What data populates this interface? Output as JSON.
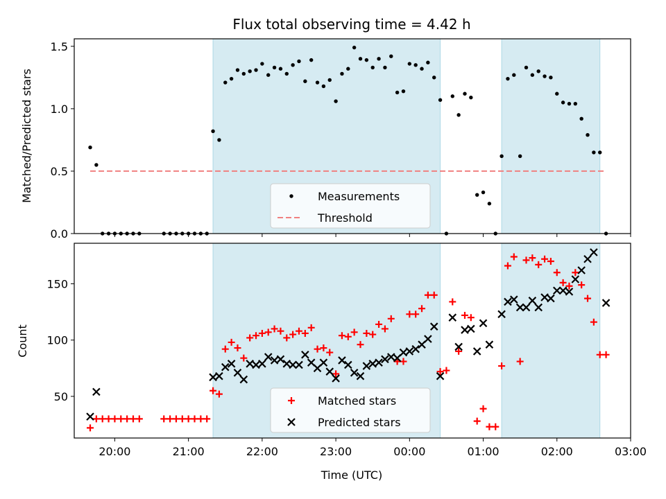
{
  "chart_data": [
    {
      "type": "scatter",
      "title": "Flux total observing time = 4.42 h",
      "xlabel": "",
      "ylabel": "Matched/Predicted stars",
      "ylim": [
        0,
        1.56
      ],
      "yticks": [
        "0.0",
        "0.5",
        "1.0",
        "1.5"
      ],
      "grid": false,
      "legend_position": "lower-center",
      "shaded_spans": [
        [
          "21:20",
          "00:25"
        ],
        [
          "01:15",
          "02:35"
        ]
      ],
      "threshold": {
        "name": "Threshold",
        "value": 0.5,
        "x_start": "19:40",
        "x_end": "02:40",
        "color": "#f08080",
        "style": "dashed"
      },
      "series": [
        {
          "name": "Measurements",
          "color": "#000000",
          "marker": "dot",
          "points": [
            [
              "19:40",
              0.69
            ],
            [
              "19:45",
              0.55
            ],
            [
              "19:50",
              0
            ],
            [
              "19:55",
              0
            ],
            [
              "20:00",
              0
            ],
            [
              "20:05",
              0
            ],
            [
              "20:10",
              0
            ],
            [
              "20:15",
              0
            ],
            [
              "20:20",
              0
            ],
            [
              "20:40",
              0
            ],
            [
              "20:45",
              0
            ],
            [
              "20:50",
              0
            ],
            [
              "20:55",
              0
            ],
            [
              "21:00",
              0
            ],
            [
              "21:05",
              0
            ],
            [
              "21:10",
              0
            ],
            [
              "21:15",
              0
            ],
            [
              "21:20",
              0.82
            ],
            [
              "21:25",
              0.75
            ],
            [
              "21:30",
              1.21
            ],
            [
              "21:35",
              1.24
            ],
            [
              "21:40",
              1.31
            ],
            [
              "21:45",
              1.28
            ],
            [
              "21:50",
              1.3
            ],
            [
              "21:55",
              1.31
            ],
            [
              "22:00",
              1.36
            ],
            [
              "22:05",
              1.27
            ],
            [
              "22:10",
              1.33
            ],
            [
              "22:15",
              1.32
            ],
            [
              "22:20",
              1.28
            ],
            [
              "22:25",
              1.35
            ],
            [
              "22:30",
              1.38
            ],
            [
              "22:35",
              1.22
            ],
            [
              "22:40",
              1.39
            ],
            [
              "22:45",
              1.21
            ],
            [
              "22:50",
              1.18
            ],
            [
              "22:55",
              1.23
            ],
            [
              "23:00",
              1.06
            ],
            [
              "23:05",
              1.28
            ],
            [
              "23:10",
              1.32
            ],
            [
              "23:15",
              1.49
            ],
            [
              "23:20",
              1.4
            ],
            [
              "23:25",
              1.39
            ],
            [
              "23:30",
              1.33
            ],
            [
              "23:35",
              1.4
            ],
            [
              "23:40",
              1.33
            ],
            [
              "23:45",
              1.42
            ],
            [
              "23:50",
              1.13
            ],
            [
              "23:55",
              1.14
            ],
            [
              "00:00",
              1.36
            ],
            [
              "00:05",
              1.35
            ],
            [
              "00:10",
              1.32
            ],
            [
              "00:15",
              1.37
            ],
            [
              "00:20",
              1.25
            ],
            [
              "00:25",
              1.07
            ],
            [
              "00:30",
              0
            ],
            [
              "00:35",
              1.1
            ],
            [
              "00:40",
              0.95
            ],
            [
              "00:45",
              1.12
            ],
            [
              "00:50",
              1.09
            ],
            [
              "00:55",
              0.31
            ],
            [
              "01:00",
              0.33
            ],
            [
              "01:05",
              0.24
            ],
            [
              "01:10",
              0
            ],
            [
              "01:15",
              0.62
            ],
            [
              "01:20",
              1.24
            ],
            [
              "01:25",
              1.27
            ],
            [
              "01:30",
              0.62
            ],
            [
              "01:35",
              1.33
            ],
            [
              "01:40",
              1.27
            ],
            [
              "01:45",
              1.3
            ],
            [
              "01:50",
              1.26
            ],
            [
              "01:55",
              1.25
            ],
            [
              "02:00",
              1.12
            ],
            [
              "02:05",
              1.05
            ],
            [
              "02:10",
              1.04
            ],
            [
              "02:15",
              1.04
            ],
            [
              "02:20",
              0.92
            ],
            [
              "02:25",
              0.79
            ],
            [
              "02:30",
              0.65
            ],
            [
              "02:35",
              0.65
            ],
            [
              "02:40",
              0
            ]
          ]
        }
      ]
    },
    {
      "type": "scatter",
      "title": "",
      "xlabel": "Time (UTC)",
      "ylabel": "Count",
      "ylim": [
        13,
        186
      ],
      "xlim": [
        "19:27",
        "03:00"
      ],
      "xticks": [
        "20:00",
        "21:00",
        "22:00",
        "23:00",
        "00:00",
        "01:00",
        "02:00",
        "03:00"
      ],
      "yticks": [
        "50",
        "100",
        "150"
      ],
      "grid": false,
      "legend_position": "lower-center",
      "shaded_spans": [
        [
          "21:20",
          "00:25"
        ],
        [
          "01:15",
          "02:35"
        ]
      ],
      "series": [
        {
          "name": "Matched stars",
          "color": "#ff0000",
          "marker": "plus",
          "points": [
            [
              "19:40",
              22
            ],
            [
              "19:45",
              30
            ],
            [
              "19:50",
              30
            ],
            [
              "19:55",
              30
            ],
            [
              "20:00",
              30
            ],
            [
              "20:05",
              30
            ],
            [
              "20:10",
              30
            ],
            [
              "20:15",
              30
            ],
            [
              "20:20",
              30
            ],
            [
              "20:40",
              30
            ],
            [
              "20:45",
              30
            ],
            [
              "20:50",
              30
            ],
            [
              "20:55",
              30
            ],
            [
              "21:00",
              30
            ],
            [
              "21:05",
              30
            ],
            [
              "21:10",
              30
            ],
            [
              "21:15",
              30
            ],
            [
              "21:20",
              55
            ],
            [
              "21:25",
              52
            ],
            [
              "21:30",
              92
            ],
            [
              "21:35",
              98
            ],
            [
              "21:40",
              93
            ],
            [
              "21:45",
              84
            ],
            [
              "21:50",
              102
            ],
            [
              "21:55",
              104
            ],
            [
              "22:00",
              106
            ],
            [
              "22:05",
              107
            ],
            [
              "22:10",
              110
            ],
            [
              "22:15",
              108
            ],
            [
              "22:20",
              102
            ],
            [
              "22:25",
              105
            ],
            [
              "22:30",
              108
            ],
            [
              "22:35",
              106
            ],
            [
              "22:40",
              111
            ],
            [
              "22:45",
              92
            ],
            [
              "22:50",
              93
            ],
            [
              "22:55",
              89
            ],
            [
              "23:00",
              70
            ],
            [
              "23:05",
              104
            ],
            [
              "23:10",
              103
            ],
            [
              "23:15",
              107
            ],
            [
              "23:20",
              96
            ],
            [
              "23:25",
              106
            ],
            [
              "23:30",
              105
            ],
            [
              "23:35",
              114
            ],
            [
              "23:40",
              110
            ],
            [
              "23:45",
              119
            ],
            [
              "23:50",
              81
            ],
            [
              "23:55",
              81
            ],
            [
              "00:00",
              123
            ],
            [
              "00:05",
              123
            ],
            [
              "00:10",
              128
            ],
            [
              "00:15",
              140
            ],
            [
              "00:20",
              140
            ],
            [
              "00:25",
              72
            ],
            [
              "00:30",
              73
            ],
            [
              "00:35",
              134
            ],
            [
              "00:40",
              90
            ],
            [
              "00:45",
              122
            ],
            [
              "00:50",
              120
            ],
            [
              "00:55",
              28
            ],
            [
              "01:00",
              39
            ],
            [
              "01:05",
              23
            ],
            [
              "01:10",
              23
            ],
            [
              "01:15",
              77
            ],
            [
              "01:20",
              166
            ],
            [
              "01:25",
              174
            ],
            [
              "01:30",
              81
            ],
            [
              "01:35",
              171
            ],
            [
              "01:40",
              173
            ],
            [
              "01:45",
              167
            ],
            [
              "01:50",
              172
            ],
            [
              "01:55",
              170
            ],
            [
              "02:00",
              160
            ],
            [
              "02:05",
              151
            ],
            [
              "02:10",
              148
            ],
            [
              "02:15",
              160
            ],
            [
              "02:20",
              149
            ],
            [
              "02:25",
              137
            ],
            [
              "02:30",
              116
            ],
            [
              "02:35",
              87
            ],
            [
              "02:40",
              87
            ]
          ]
        },
        {
          "name": "Predicted stars",
          "color": "#000000",
          "marker": "x",
          "points": [
            [
              "19:40",
              32
            ],
            [
              "19:45",
              54
            ],
            [
              "21:20",
              67
            ],
            [
              "21:25",
              68
            ],
            [
              "21:30",
              76
            ],
            [
              "21:35",
              79
            ],
            [
              "21:40",
              71
            ],
            [
              "21:45",
              65
            ],
            [
              "21:50",
              79
            ],
            [
              "21:55",
              78
            ],
            [
              "22:00",
              79
            ],
            [
              "22:05",
              85
            ],
            [
              "22:10",
              82
            ],
            [
              "22:15",
              83
            ],
            [
              "22:20",
              79
            ],
            [
              "22:25",
              78
            ],
            [
              "22:30",
              78
            ],
            [
              "22:35",
              87
            ],
            [
              "22:40",
              80
            ],
            [
              "22:45",
              75
            ],
            [
              "22:50",
              80
            ],
            [
              "22:55",
              72
            ],
            [
              "23:00",
              66
            ],
            [
              "23:05",
              82
            ],
            [
              "23:10",
              78
            ],
            [
              "23:15",
              71
            ],
            [
              "23:20",
              68
            ],
            [
              "23:25",
              77
            ],
            [
              "23:30",
              79
            ],
            [
              "23:35",
              80
            ],
            [
              "23:40",
              83
            ],
            [
              "23:45",
              85
            ],
            [
              "23:50",
              84
            ],
            [
              "23:55",
              89
            ],
            [
              "00:00",
              90
            ],
            [
              "00:05",
              92
            ],
            [
              "00:10",
              96
            ],
            [
              "00:15",
              101
            ],
            [
              "00:20",
              112
            ],
            [
              "00:25",
              68
            ],
            [
              "00:35",
              120
            ],
            [
              "00:40",
              94
            ],
            [
              "00:45",
              109
            ],
            [
              "00:50",
              110
            ],
            [
              "00:55",
              90
            ],
            [
              "01:00",
              115
            ],
            [
              "01:05",
              96
            ],
            [
              "01:15",
              123
            ],
            [
              "01:20",
              134
            ],
            [
              "01:25",
              136
            ],
            [
              "01:30",
              129
            ],
            [
              "01:35",
              129
            ],
            [
              "01:40",
              135
            ],
            [
              "01:45",
              129
            ],
            [
              "01:50",
              138
            ],
            [
              "01:55",
              137
            ],
            [
              "02:00",
              144
            ],
            [
              "02:05",
              144
            ],
            [
              "02:10",
              143
            ],
            [
              "02:15",
              154
            ],
            [
              "02:20",
              162
            ],
            [
              "02:25",
              172
            ],
            [
              "02:30",
              178
            ],
            [
              "02:40",
              133
            ]
          ]
        }
      ]
    }
  ]
}
